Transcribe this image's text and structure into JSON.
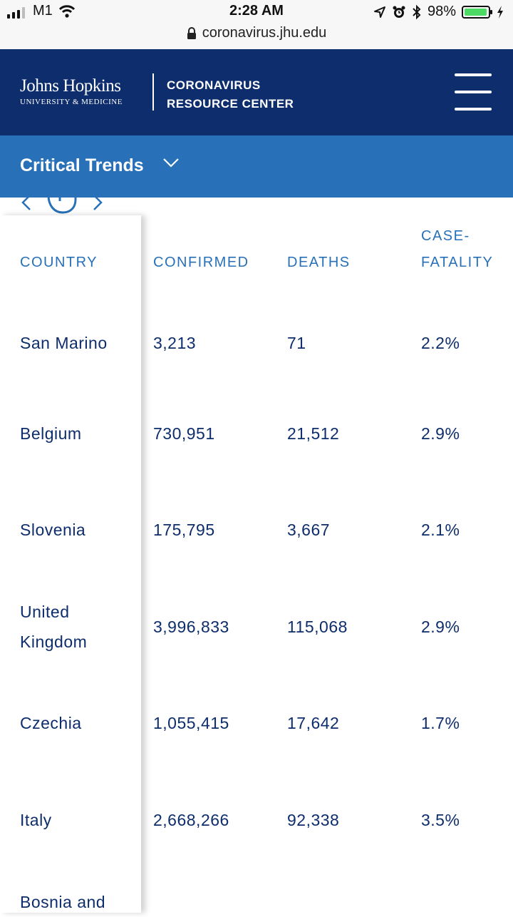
{
  "status_bar": {
    "carrier": "M1",
    "time": "2:28 AM",
    "battery": "98%",
    "battery_level": 0.98,
    "url": "coronavirus.jhu.edu"
  },
  "header": {
    "logo_line1": "Johns Hopkins",
    "logo_line2": "UNIVERSITY & MEDICINE",
    "title_line1": "CORONAVIRUS",
    "title_line2": "RESOURCE CENTER"
  },
  "section": {
    "title": "Critical Trends"
  },
  "table": {
    "columns": [
      "COUNTRY",
      "CONFIRMED",
      "DEATHS",
      "CASE-FATALITY"
    ],
    "rows": [
      {
        "country": "San Marino",
        "confirmed": "3,213",
        "deaths": "71",
        "cfr": "2.2%"
      },
      {
        "country": "Belgium",
        "confirmed": "730,951",
        "deaths": "21,512",
        "cfr": "2.9%"
      },
      {
        "country": "Slovenia",
        "confirmed": "175,795",
        "deaths": "3,667",
        "cfr": "2.1%"
      },
      {
        "country": "United Kingdom",
        "confirmed": "3,996,833",
        "deaths": "115,068",
        "cfr": "2.9%"
      },
      {
        "country": "Czechia",
        "confirmed": "1,055,415",
        "deaths": "17,642",
        "cfr": "1.7%"
      },
      {
        "country": "Italy",
        "confirmed": "2,668,266",
        "deaths": "92,338",
        "cfr": "3.5%"
      },
      {
        "country": "Bosnia and",
        "confirmed": "",
        "deaths": "",
        "cfr": ""
      }
    ]
  }
}
